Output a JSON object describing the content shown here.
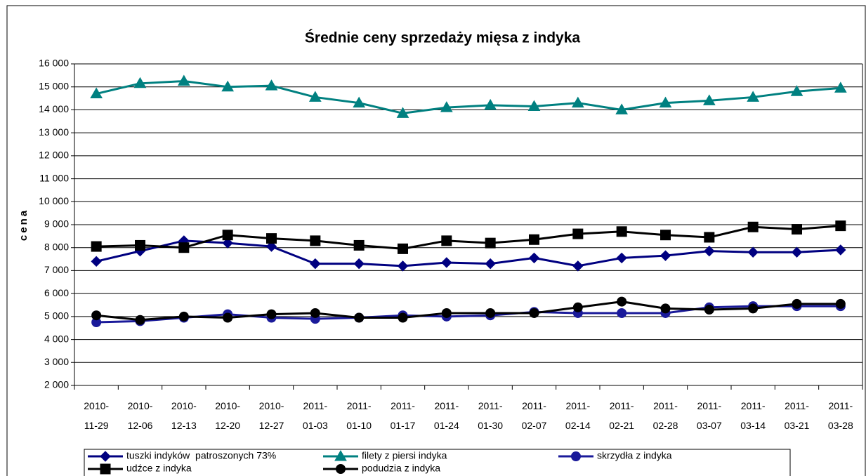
{
  "chart_data": {
    "type": "line",
    "title": "Średnie ceny sprzedaży mięsa z indyka",
    "y_label": "cena",
    "categories": [
      "2010-11-29",
      "2010-12-06",
      "2010-12-13",
      "2010-12-20",
      "2010-12-27",
      "2011-01-03",
      "2011-01-10",
      "2011-01-17",
      "2011-01-24",
      "2011-01-30",
      "2011-02-07",
      "2011-02-14",
      "2011-02-21",
      "2011-02-28",
      "2011-03-07",
      "2011-03-14",
      "2011-03-21",
      "2011-03-28"
    ],
    "series": [
      {
        "name": "tuszki indyków  patroszonych 73%",
        "color": "#000080",
        "marker": "diamond",
        "values": [
          7400,
          7850,
          8300,
          8200,
          8050,
          7300,
          7300,
          7200,
          7350,
          7300,
          7550,
          7200,
          7550,
          7650,
          7850,
          7800,
          7800,
          7900
        ]
      },
      {
        "name": "filety z piersi indyka",
        "color": "#008080",
        "marker": "triangle",
        "values": [
          14700,
          15150,
          15250,
          15000,
          15050,
          14550,
          14300,
          13850,
          14100,
          14200,
          14150,
          14300,
          14000,
          14300,
          14400,
          14550,
          14800,
          14950
        ]
      },
      {
        "name": "skrzydła z indyka",
        "color": "#1a1a9a",
        "marker": "circle",
        "values": [
          4750,
          4800,
          4950,
          5100,
          4950,
          4900,
          4950,
          5050,
          5000,
          5050,
          5200,
          5150,
          5150,
          5150,
          5400,
          5450,
          5450,
          5450
        ]
      },
      {
        "name": "udźce z indyka",
        "color": "#000000",
        "marker": "square",
        "values": [
          8050,
          8100,
          8000,
          8550,
          8400,
          8300,
          8100,
          7950,
          8300,
          8200,
          8350,
          8600,
          8700,
          8550,
          8450,
          8900,
          8800,
          8950
        ]
      },
      {
        "name": "podudzia z indyka",
        "color": "#000000",
        "marker": "circle",
        "values": [
          5050,
          4850,
          5000,
          4950,
          5100,
          5150,
          4950,
          4950,
          5150,
          5150,
          5150,
          5400,
          5650,
          5350,
          5300,
          5350,
          5550,
          5550
        ]
      }
    ],
    "ylim": [
      2000,
      16000
    ],
    "yticks": [
      {
        "value": 2000,
        "label": "2 000"
      },
      {
        "value": 3000,
        "label": "3 000"
      },
      {
        "value": 4000,
        "label": "4 000"
      },
      {
        "value": 5000,
        "label": "5 000"
      },
      {
        "value": 6000,
        "label": "6 000"
      },
      {
        "value": 7000,
        "label": "7 000"
      },
      {
        "value": 8000,
        "label": "8 000"
      },
      {
        "value": 9000,
        "label": "9 000"
      },
      {
        "value": 10000,
        "label": "10 000"
      },
      {
        "value": 11000,
        "label": "11 000"
      },
      {
        "value": 12000,
        "label": "12 000"
      },
      {
        "value": 13000,
        "label": "13 000"
      },
      {
        "value": 14000,
        "label": "14 000"
      },
      {
        "value": 15000,
        "label": "15 000"
      },
      {
        "value": 16000,
        "label": "16 000"
      }
    ],
    "grid": true
  }
}
